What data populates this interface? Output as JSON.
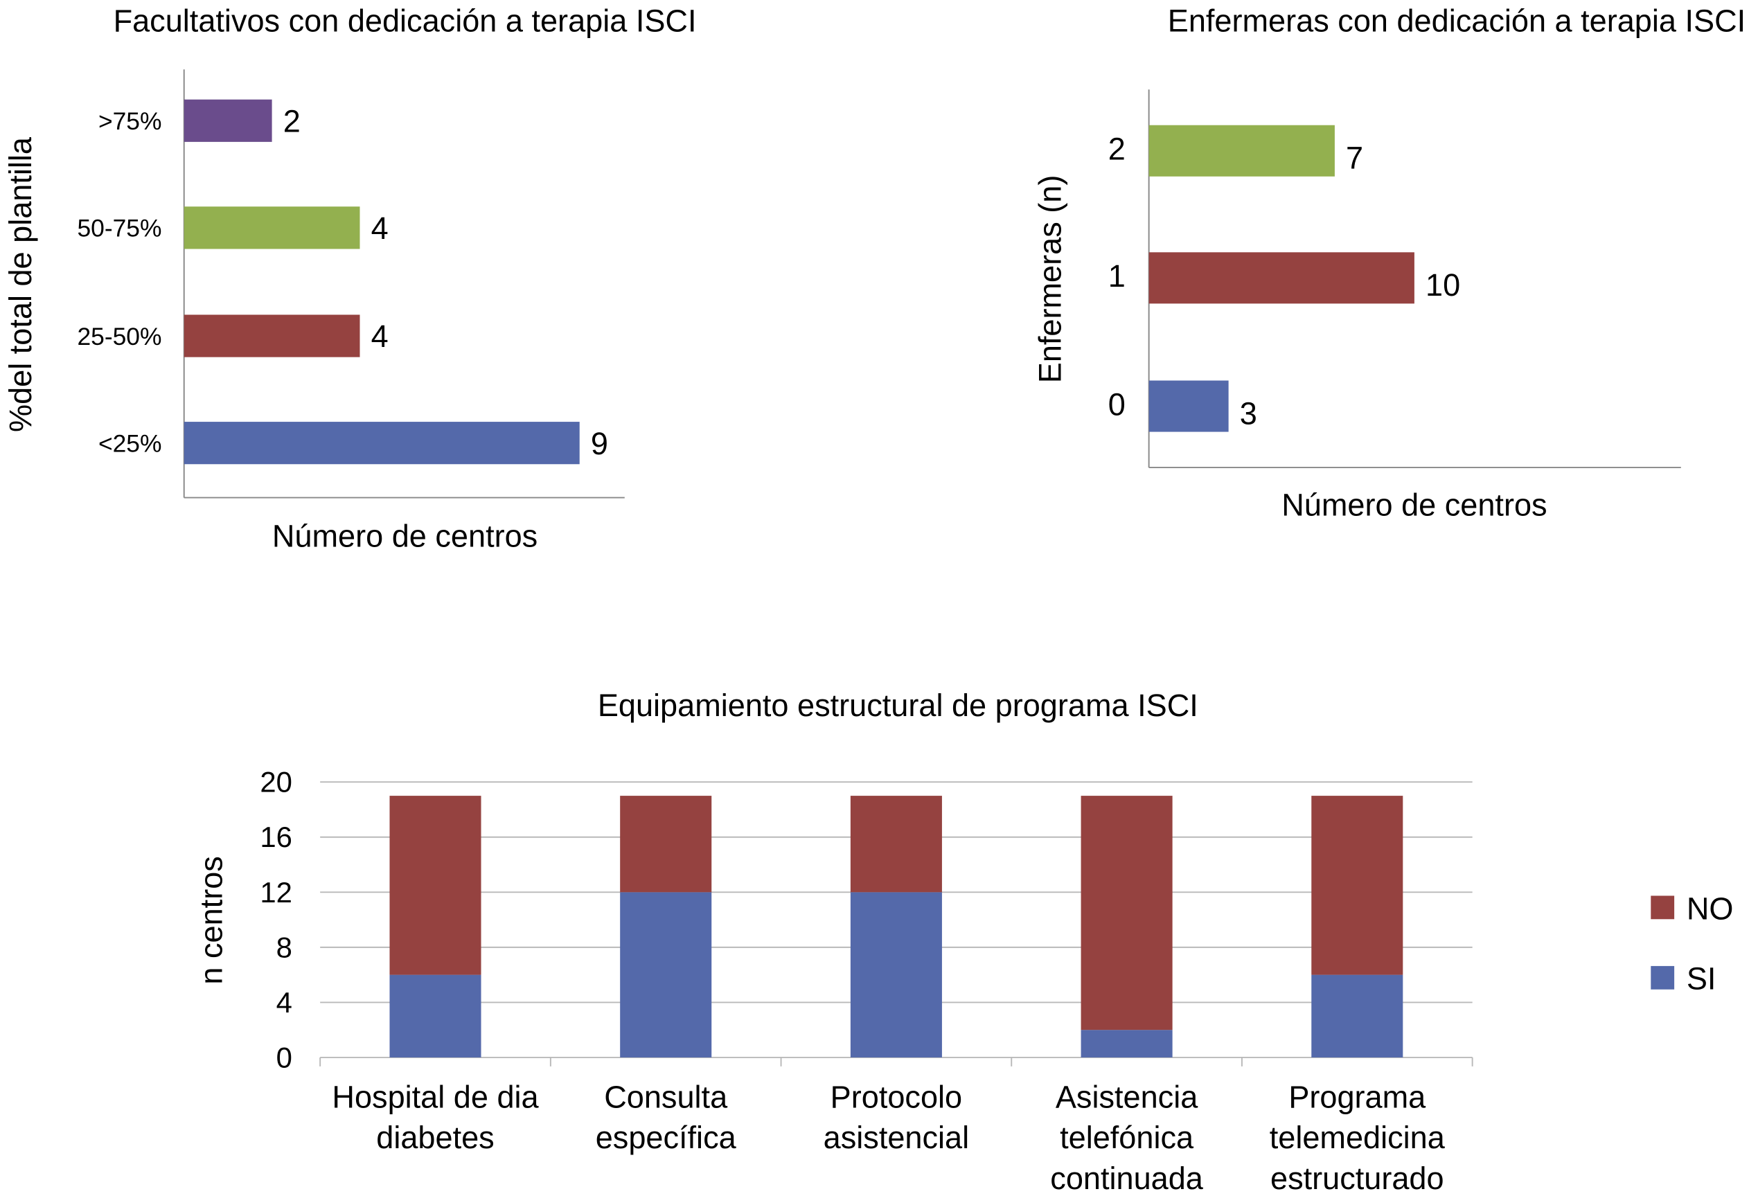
{
  "colors": {
    "purple": "#6a4c8c",
    "green": "#93b04f",
    "red": "#954240",
    "blue": "#5469aa",
    "grid": "#b9b9b9"
  },
  "chart_data": [
    {
      "type": "bar",
      "orientation": "horizontal",
      "title": "Facultativos con dedicación a terapia ISCI",
      "xlabel": "Número  de centros",
      "ylabel": "%del total de  plantilla",
      "categories": [
        ">75%",
        "50-75%",
        "25-50%",
        "<25%"
      ],
      "values": [
        2,
        4,
        4,
        9
      ],
      "bar_colors": [
        "#6a4c8c",
        "#93b04f",
        "#954240",
        "#5469aa"
      ],
      "data_labels": true,
      "grid": false
    },
    {
      "type": "bar",
      "orientation": "horizontal",
      "title": "Enfermeras con dedicación a terapia ISCI",
      "xlabel": "Número  de centros",
      "ylabel": "Enfermeras (n)",
      "categories": [
        "2",
        "1",
        "0"
      ],
      "values": [
        7,
        10,
        3
      ],
      "bar_colors": [
        "#93b04f",
        "#954240",
        "#5469aa"
      ],
      "data_labels": true,
      "grid": false
    },
    {
      "type": "bar",
      "stacked": true,
      "title": "Equipamiento  estructural de programa  ISCI",
      "xlabel": "",
      "ylabel": "n centros",
      "categories": [
        [
          "Hospital de dia",
          "diabetes"
        ],
        [
          "Consulta",
          "específica"
        ],
        [
          "Protocolo",
          "asistencial"
        ],
        [
          "Asistencia",
          "telefónica",
          "continuada"
        ],
        [
          "Programa",
          "telemedicina",
          "estructurado"
        ]
      ],
      "series": [
        {
          "name": "SI",
          "color": "#5469aa",
          "values": [
            6,
            12,
            12,
            2,
            6
          ]
        },
        {
          "name": "NO",
          "color": "#954240",
          "values": [
            13,
            7,
            7,
            17,
            13
          ]
        }
      ],
      "ylim": [
        0,
        20
      ],
      "yticks": [
        "0",
        "4",
        "8",
        "12",
        "16",
        "20"
      ],
      "grid": true,
      "legend": "right",
      "legend_order": [
        "NO",
        "SI"
      ]
    }
  ]
}
